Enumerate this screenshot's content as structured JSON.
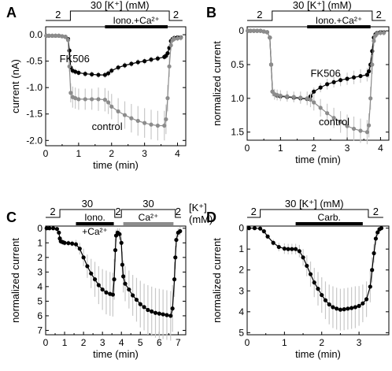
{
  "colors": {
    "fk506": "#000000",
    "control": "#8c8c8c",
    "error": "#c8c8c8"
  },
  "chart_data": [
    {
      "type": "line",
      "panel_letter": "A",
      "xlabel": "time (min)",
      "ylabel": "current (nA)",
      "xlim": [
        0,
        4.25
      ],
      "ylim": [
        -2.1,
        0.15
      ],
      "yreverse": false,
      "xticks": [
        0,
        1,
        2,
        3,
        4
      ],
      "yticks": [
        0,
        -0.5,
        -1.0,
        -1.5,
        -2.0
      ],
      "ytick_labels": [
        "0.0",
        "-0.5",
        "-1.0",
        "-1.5",
        "-2.0"
      ],
      "protocol": {
        "labels": [
          "2",
          "30 [K⁺] (mM)",
          "2"
        ],
        "steps": [
          [
            0,
            0.75
          ],
          [
            0.75,
            3.75
          ],
          [
            3.75,
            4.15
          ]
        ]
      },
      "drug_bar": {
        "label": "Iono.+Ca²⁺",
        "x": [
          1.8,
          3.7
        ]
      },
      "series": [
        {
          "name": "FK506",
          "color_key": "fk506",
          "x": [
            0.02,
            0.1,
            0.2,
            0.3,
            0.4,
            0.5,
            0.6,
            0.68,
            0.72,
            0.76,
            0.82,
            0.9,
            1.0,
            1.2,
            1.4,
            1.6,
            1.8,
            1.9,
            2.0,
            2.2,
            2.4,
            2.6,
            2.8,
            3.0,
            3.2,
            3.4,
            3.6,
            3.65,
            3.7,
            3.75,
            3.8,
            3.85,
            3.9,
            4.0,
            4.1
          ],
          "y": [
            -0.02,
            -0.02,
            -0.02,
            -0.02,
            -0.02,
            -0.03,
            -0.04,
            -0.08,
            -0.3,
            -0.62,
            -0.68,
            -0.7,
            -0.72,
            -0.74,
            -0.75,
            -0.76,
            -0.76,
            -0.73,
            -0.68,
            -0.62,
            -0.58,
            -0.55,
            -0.52,
            -0.5,
            -0.47,
            -0.45,
            -0.42,
            -0.4,
            -0.35,
            -0.25,
            -0.12,
            -0.08,
            -0.06,
            -0.05,
            -0.05
          ],
          "err": [
            0.02,
            0.02,
            0.02,
            0.02,
            0.02,
            0.02,
            0.02,
            0.03,
            0.05,
            0.06,
            0.06,
            0.06,
            0.06,
            0.06,
            0.06,
            0.06,
            0.06,
            0.06,
            0.06,
            0.06,
            0.06,
            0.06,
            0.06,
            0.06,
            0.06,
            0.06,
            0.06,
            0.06,
            0.06,
            0.05,
            0.04,
            0.03,
            0.03,
            0.03,
            0.03
          ]
        },
        {
          "name": "control",
          "color_key": "control",
          "x": [
            0.02,
            0.1,
            0.2,
            0.3,
            0.4,
            0.5,
            0.6,
            0.68,
            0.72,
            0.76,
            0.82,
            0.9,
            1.0,
            1.2,
            1.4,
            1.6,
            1.8,
            1.9,
            2.0,
            2.2,
            2.4,
            2.6,
            2.8,
            3.0,
            3.2,
            3.4,
            3.6,
            3.65,
            3.7,
            3.75,
            3.8,
            3.85,
            3.9,
            4.0,
            4.1
          ],
          "y": [
            -0.02,
            -0.02,
            -0.02,
            -0.02,
            -0.02,
            -0.03,
            -0.04,
            -0.1,
            -0.6,
            -1.1,
            -1.18,
            -1.2,
            -1.22,
            -1.22,
            -1.22,
            -1.22,
            -1.23,
            -1.28,
            -1.36,
            -1.45,
            -1.52,
            -1.58,
            -1.63,
            -1.67,
            -1.7,
            -1.72,
            -1.72,
            -1.6,
            -1.2,
            -0.6,
            -0.2,
            -0.1,
            -0.08,
            -0.07,
            -0.06
          ],
          "err": [
            0.03,
            0.03,
            0.03,
            0.03,
            0.03,
            0.03,
            0.03,
            0.05,
            0.1,
            0.18,
            0.2,
            0.2,
            0.2,
            0.2,
            0.2,
            0.22,
            0.22,
            0.22,
            0.24,
            0.25,
            0.26,
            0.27,
            0.28,
            0.28,
            0.28,
            0.28,
            0.28,
            0.28,
            0.25,
            0.2,
            0.1,
            0.06,
            0.05,
            0.05,
            0.05
          ]
        }
      ],
      "annotations": [
        {
          "text": "FK506",
          "x": 0.42,
          "y": -0.52,
          "color_key": "fk506"
        },
        {
          "text": "control",
          "x": 1.4,
          "y": -1.8,
          "color_key": "control"
        }
      ]
    },
    {
      "type": "line",
      "panel_letter": "B",
      "xlabel": "time (min)",
      "ylabel": "normalized current",
      "xlim": [
        0,
        4.25
      ],
      "ylim": [
        -0.06,
        1.62
      ],
      "yreverse": true,
      "xticks": [
        0,
        1,
        2,
        3,
        4
      ],
      "yticks": [
        0,
        0.5,
        1.0,
        1.5
      ],
      "ytick_labels": [
        "0",
        "0.5",
        "1.0",
        "1.5"
      ],
      "protocol": {
        "labels": [
          "2",
          "30 [K⁺] (mM)",
          "2"
        ],
        "steps": [
          [
            0,
            0.75
          ],
          [
            0.75,
            3.75
          ],
          [
            3.75,
            4.15
          ]
        ]
      },
      "drug_bar": {
        "label": "Iono.+Ca²⁺",
        "x": [
          1.8,
          3.7
        ]
      },
      "series": [
        {
          "name": "FK506",
          "color_key": "fk506",
          "x": [
            0.02,
            0.1,
            0.2,
            0.3,
            0.4,
            0.5,
            0.6,
            0.68,
            0.72,
            0.76,
            0.82,
            0.9,
            1.0,
            1.2,
            1.4,
            1.6,
            1.8,
            1.9,
            2.0,
            2.2,
            2.4,
            2.6,
            2.8,
            3.0,
            3.2,
            3.4,
            3.6,
            3.65,
            3.7,
            3.75,
            3.8,
            3.85,
            3.9,
            4.0,
            4.1
          ],
          "y": [
            0,
            0,
            0,
            0,
            0,
            0.01,
            0.02,
            0.1,
            0.5,
            0.9,
            0.94,
            0.96,
            0.97,
            0.98,
            0.99,
            1.0,
            1.01,
            0.97,
            0.9,
            0.84,
            0.79,
            0.76,
            0.73,
            0.71,
            0.69,
            0.67,
            0.65,
            0.6,
            0.5,
            0.3,
            0.1,
            0.05,
            0.03,
            0.02,
            0.02
          ],
          "err": [
            0.02,
            0.02,
            0.02,
            0.02,
            0.02,
            0.02,
            0.02,
            0.03,
            0.04,
            0.05,
            0.05,
            0.05,
            0.05,
            0.05,
            0.05,
            0.05,
            0.05,
            0.05,
            0.06,
            0.07,
            0.08,
            0.08,
            0.09,
            0.09,
            0.1,
            0.1,
            0.1,
            0.1,
            0.1,
            0.08,
            0.05,
            0.04,
            0.03,
            0.03,
            0.03
          ]
        },
        {
          "name": "control",
          "color_key": "control",
          "x": [
            0.02,
            0.1,
            0.2,
            0.3,
            0.4,
            0.5,
            0.6,
            0.68,
            0.72,
            0.76,
            0.82,
            0.9,
            1.0,
            1.2,
            1.4,
            1.6,
            1.8,
            1.9,
            2.0,
            2.2,
            2.4,
            2.6,
            2.8,
            3.0,
            3.2,
            3.4,
            3.6,
            3.65,
            3.7,
            3.75,
            3.8,
            3.85,
            3.9,
            4.0,
            4.1
          ],
          "y": [
            0,
            0,
            0,
            0,
            0,
            0.01,
            0.02,
            0.1,
            0.5,
            0.9,
            0.94,
            0.95,
            0.96,
            0.97,
            0.98,
            0.99,
            1.0,
            1.02,
            1.06,
            1.14,
            1.22,
            1.29,
            1.35,
            1.41,
            1.45,
            1.48,
            1.5,
            1.4,
            1.0,
            0.5,
            0.15,
            0.07,
            0.04,
            0.03,
            0.03
          ],
          "err": [
            0.02,
            0.02,
            0.02,
            0.02,
            0.02,
            0.02,
            0.02,
            0.03,
            0.05,
            0.07,
            0.08,
            0.08,
            0.08,
            0.08,
            0.08,
            0.09,
            0.1,
            0.11,
            0.12,
            0.13,
            0.14,
            0.15,
            0.16,
            0.17,
            0.18,
            0.18,
            0.18,
            0.18,
            0.17,
            0.14,
            0.08,
            0.05,
            0.04,
            0.04,
            0.04
          ]
        }
      ],
      "annotations": [
        {
          "text": "FK506",
          "x": 1.9,
          "y": 0.68,
          "color_key": "fk506"
        },
        {
          "text": "control",
          "x": 2.15,
          "y": 1.4,
          "color_key": "control"
        }
      ]
    },
    {
      "type": "line",
      "panel_letter": "C",
      "xlabel": "time (min)",
      "ylabel": "normalized current",
      "xlim": [
        0,
        7.4
      ],
      "ylim": [
        -0.15,
        7.3
      ],
      "yreverse": true,
      "xticks": [
        0,
        1,
        2,
        3,
        4,
        5,
        6,
        7
      ],
      "yticks": [
        0,
        1,
        2,
        3,
        4,
        5,
        6,
        7
      ],
      "ytick_labels": [
        "0",
        "1",
        "2",
        "3",
        "4",
        "5",
        "6",
        "7"
      ],
      "protocol": {
        "labels": [
          "2",
          "30",
          "2",
          "30",
          "2"
        ],
        "steps": [
          [
            0,
            0.75
          ],
          [
            0.75,
            3.65
          ],
          [
            3.65,
            4.0
          ],
          [
            4.0,
            6.85
          ],
          [
            6.85,
            7.15
          ]
        ]
      },
      "protocol_unit_label": "[K⁺]",
      "protocol_unit_label2": "(mM)",
      "drug_bars": [
        {
          "label": "Iono.",
          "label2": "+Ca²⁺",
          "x": [
            1.6,
            3.6
          ],
          "color_key": "fk506"
        },
        {
          "label": "Ca²⁺",
          "x": [
            4.1,
            6.75
          ],
          "color_key": "control"
        }
      ],
      "series": [
        {
          "name": "",
          "color_key": "fk506",
          "x": [
            0.05,
            0.2,
            0.4,
            0.6,
            0.7,
            0.75,
            0.8,
            0.9,
            1.0,
            1.2,
            1.4,
            1.6,
            1.8,
            2.0,
            2.2,
            2.4,
            2.6,
            2.8,
            3.0,
            3.2,
            3.4,
            3.55,
            3.62,
            3.68,
            3.72,
            3.8,
            3.9,
            4.0,
            4.05,
            4.1,
            4.2,
            4.4,
            4.6,
            4.8,
            5.0,
            5.2,
            5.4,
            5.6,
            5.8,
            6.0,
            6.2,
            6.4,
            6.6,
            6.7,
            6.8,
            6.85,
            6.9,
            7.0,
            7.1
          ],
          "y": [
            0,
            0,
            0,
            0.05,
            0.3,
            0.7,
            0.9,
            0.95,
            1.0,
            1.02,
            1.05,
            1.1,
            1.4,
            2.0,
            2.6,
            3.1,
            3.5,
            3.9,
            4.2,
            4.4,
            4.5,
            4.55,
            3.5,
            1.5,
            0.5,
            0.3,
            0.4,
            1.0,
            2.5,
            3.3,
            3.8,
            4.2,
            4.6,
            4.9,
            5.2,
            5.4,
            5.6,
            5.7,
            5.8,
            5.85,
            5.9,
            5.95,
            6.0,
            5.5,
            3.5,
            2.0,
            0.8,
            0.3,
            0.2
          ],
          "err": [
            0.05,
            0.05,
            0.05,
            0.05,
            0.1,
            0.15,
            0.2,
            0.2,
            0.2,
            0.2,
            0.2,
            0.3,
            0.4,
            0.6,
            0.8,
            1.0,
            1.2,
            1.3,
            1.4,
            1.5,
            1.5,
            1.5,
            1.4,
            0.8,
            0.4,
            0.3,
            0.4,
            0.6,
            0.9,
            1.1,
            1.2,
            1.3,
            1.4,
            1.5,
            1.6,
            1.6,
            1.7,
            1.7,
            1.7,
            1.7,
            1.7,
            1.7,
            1.7,
            1.6,
            1.2,
            0.8,
            0.5,
            0.3,
            0.3
          ]
        }
      ]
    },
    {
      "type": "line",
      "panel_letter": "D",
      "xlabel": "time (min)",
      "ylabel": "normalized current",
      "xlim": [
        0,
        3.8
      ],
      "ylim": [
        -0.1,
        5.1
      ],
      "yreverse": true,
      "xticks": [
        0,
        1,
        2,
        3
      ],
      "yticks": [
        0,
        1,
        2,
        3,
        4,
        5
      ],
      "ytick_labels": [
        "0",
        "1",
        "2",
        "3",
        "4",
        "5"
      ],
      "protocol": {
        "labels": [
          "2",
          "30 [K⁺] (mM)",
          "2"
        ],
        "steps": [
          [
            0,
            0.35
          ],
          [
            0.35,
            3.25
          ],
          [
            3.25,
            3.65
          ]
        ]
      },
      "drug_bar": {
        "label": "Carb.",
        "x": [
          1.3,
          3.1
        ]
      },
      "series": [
        {
          "name": "",
          "color_key": "fk506",
          "x": [
            0.05,
            0.2,
            0.35,
            0.45,
            0.55,
            0.7,
            0.85,
            1.0,
            1.1,
            1.2,
            1.3,
            1.4,
            1.5,
            1.6,
            1.7,
            1.8,
            1.9,
            2.0,
            2.1,
            2.2,
            2.3,
            2.4,
            2.5,
            2.6,
            2.7,
            2.8,
            2.9,
            3.0,
            3.1,
            3.2,
            3.3,
            3.35,
            3.4,
            3.45,
            3.5,
            3.55,
            3.6
          ],
          "y": [
            0,
            0,
            0.02,
            0.15,
            0.4,
            0.7,
            0.9,
            0.98,
            1.0,
            1.0,
            1.0,
            1.1,
            1.4,
            1.8,
            2.2,
            2.6,
            2.9,
            3.2,
            3.45,
            3.65,
            3.78,
            3.85,
            3.9,
            3.88,
            3.85,
            3.82,
            3.78,
            3.72,
            3.6,
            3.4,
            2.8,
            2.0,
            1.2,
            0.5,
            0.2,
            0.05,
            0.0
          ],
          "err": [
            0.05,
            0.05,
            0.05,
            0.08,
            0.1,
            0.15,
            0.2,
            0.25,
            0.25,
            0.25,
            0.25,
            0.3,
            0.4,
            0.5,
            0.6,
            0.7,
            0.8,
            0.85,
            0.9,
            0.95,
            1.0,
            1.0,
            1.0,
            1.0,
            1.0,
            1.0,
            1.0,
            0.95,
            0.9,
            0.85,
            0.75,
            0.6,
            0.45,
            0.3,
            0.2,
            0.1,
            0.1
          ]
        }
      ]
    }
  ]
}
